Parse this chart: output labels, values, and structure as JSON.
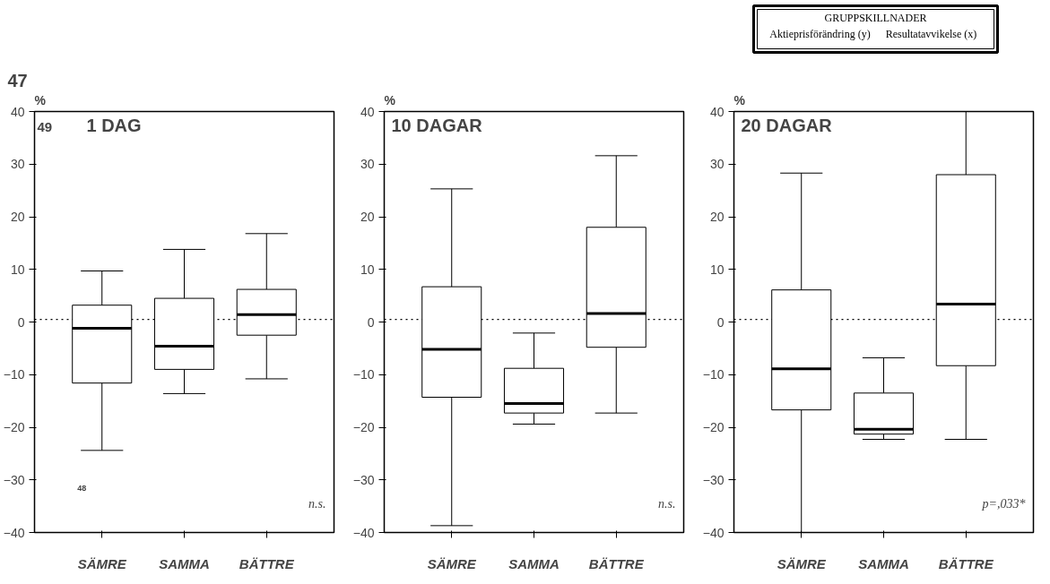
{
  "chart_data": [
    {
      "type": "box",
      "title": "1 DAG",
      "ylabel": "%",
      "categories": [
        "SÄMRE",
        "SAMMA",
        "BÄTTRE"
      ],
      "boxes": [
        {
          "low": -24.4,
          "q1": -11.6,
          "median": -1.2,
          "q3": 3.2,
          "high": 9.7
        },
        {
          "low": -13.6,
          "q1": -9.0,
          "median": -4.6,
          "q3": 4.5,
          "high": 13.8
        },
        {
          "low": -10.8,
          "q1": -2.5,
          "median": 1.4,
          "q3": 6.2,
          "high": 16.8
        }
      ],
      "ylim": [
        -40,
        40
      ],
      "yticks": [
        -40,
        -30,
        -20,
        -10,
        0,
        10,
        20,
        30,
        40
      ],
      "ref_lines": [
        {
          "axis": "y",
          "value": 0.5,
          "line_style": "dotted"
        }
      ],
      "annotations": [
        "47",
        "49",
        "48",
        "n.s."
      ]
    },
    {
      "type": "box",
      "title": "10 DAGAR",
      "ylabel": "%",
      "categories": [
        "SÄMRE",
        "SAMMA",
        "BÄTTRE"
      ],
      "boxes": [
        {
          "low": -38.7,
          "q1": -14.3,
          "median": -5.2,
          "q3": 6.7,
          "high": 25.3
        },
        {
          "low": -19.4,
          "q1": -17.3,
          "median": -15.5,
          "q3": -8.8,
          "high": -2.1
        },
        {
          "low": -17.3,
          "q1": -4.8,
          "median": 1.6,
          "q3": 18.0,
          "high": 31.6
        }
      ],
      "ylim": [
        -40,
        40
      ],
      "yticks": [
        -40,
        -30,
        -20,
        -10,
        0,
        10,
        20,
        30,
        40
      ],
      "ref_lines": [
        {
          "axis": "y",
          "value": 0.5,
          "line_style": "dotted"
        }
      ],
      "annotations": [
        "n.s."
      ]
    },
    {
      "type": "box",
      "title": "20 DAGAR",
      "ylabel": "%",
      "categories": [
        "SÄMRE",
        "SAMMA",
        "BÄTTRE"
      ],
      "boxes": [
        {
          "low": -40,
          "q1": -16.7,
          "median": -8.9,
          "q3": 6.1,
          "high": 28.3
        },
        {
          "low": -22.3,
          "q1": -21.3,
          "median": -20.4,
          "q3": -13.5,
          "high": -6.8
        },
        {
          "low": -22.3,
          "q1": -8.3,
          "median": 3.4,
          "q3": 28.0,
          "high": 40
        }
      ],
      "ylim": [
        -40,
        40
      ],
      "yticks": [
        -40,
        -30,
        -20,
        -10,
        0,
        10,
        20,
        30,
        40
      ],
      "ref_lines": [
        {
          "axis": "y",
          "value": 0.5,
          "line_style": "dotted"
        }
      ],
      "annotations": [
        "GRUPPSKILLNADER",
        "Aktieprisförändring (y)",
        "Resultatavvikelse (x)",
        "p=,033*"
      ]
    }
  ]
}
